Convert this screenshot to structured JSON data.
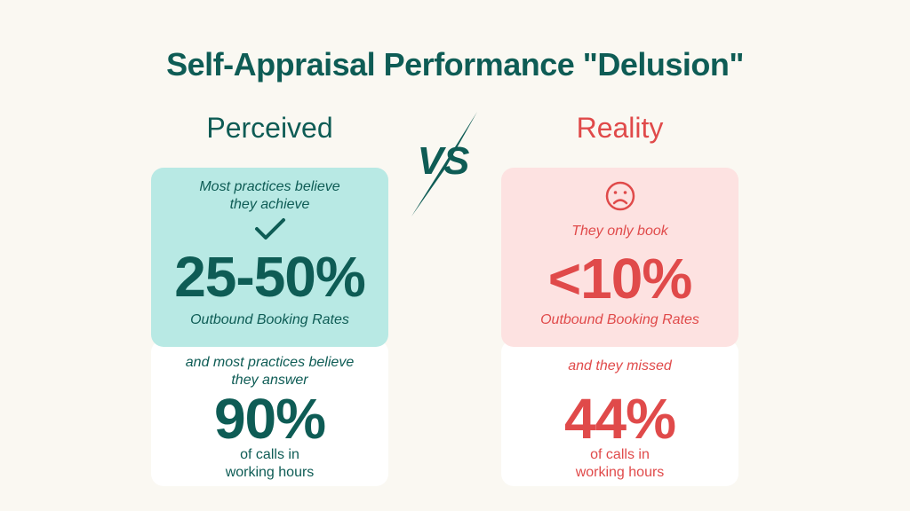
{
  "title": "Self-Appraisal Performance \"Delusion\"",
  "vs_label": "VS",
  "perceived": {
    "heading": "Perceived",
    "top_intro": "Most practices believe they achieve",
    "top_value": "25-50%",
    "top_caption": "Outbound Booking Rates",
    "bottom_intro": "and most practices believe they answer",
    "bottom_value": "90%",
    "bottom_caption": "of calls in working hours",
    "check_icon": "check-icon"
  },
  "reality": {
    "heading": "Reality",
    "top_intro": "They only book",
    "top_value": "<10%",
    "top_caption": "Outbound Booking Rates",
    "bottom_intro": "and they missed",
    "bottom_value": "44%",
    "bottom_caption": "of calls in working hours",
    "sad_icon": "sad-face-icon"
  },
  "colors": {
    "background": "#faf8f2",
    "teal": "#0e5c55",
    "teal_card": "#b8e9e4",
    "red": "#e04a4a",
    "red_card": "#fde2e1"
  }
}
